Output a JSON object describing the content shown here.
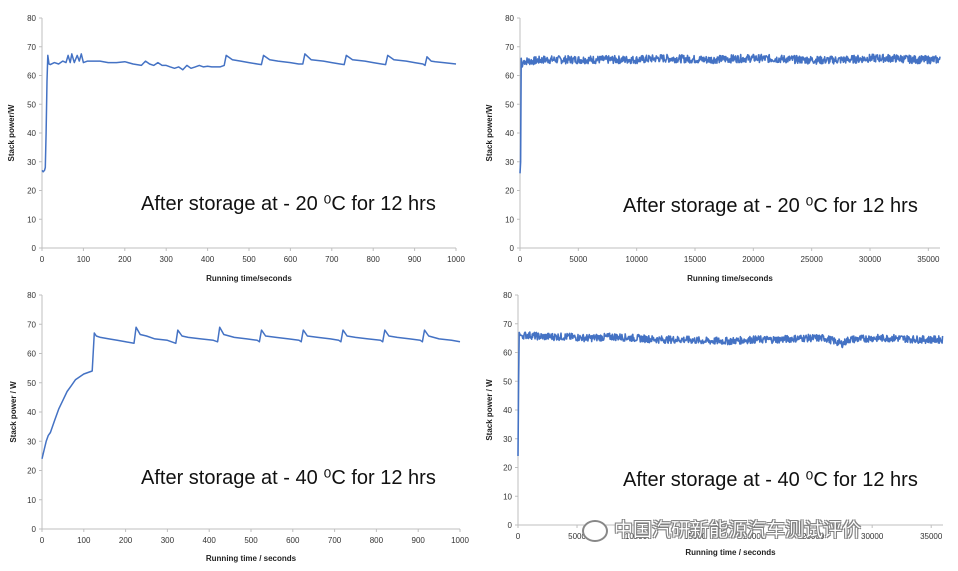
{
  "chart_data": [
    {
      "type": "line",
      "xlabel": "Running time/seconds",
      "ylabel": "Stack power/W",
      "xlim": [
        0,
        1000
      ],
      "ylim": [
        0,
        80
      ],
      "xticks": [
        0,
        100,
        200,
        300,
        400,
        500,
        600,
        700,
        800,
        900,
        1000
      ],
      "yticks": [
        0,
        10,
        20,
        30,
        40,
        50,
        60,
        70,
        80
      ],
      "annotation": "After storage at - 20 ⁰C for 12 hrs",
      "color": "#4472c4",
      "noise": 0,
      "series": [
        {
          "x": [
            0,
            3,
            6,
            8,
            10,
            12,
            14,
            17,
            20,
            30,
            40,
            50,
            58,
            63,
            68,
            72,
            78,
            85,
            90,
            95,
            100,
            110,
            120,
            140,
            160,
            180,
            200,
            220,
            240,
            250,
            260,
            270,
            280,
            290,
            300,
            310,
            320,
            330,
            340,
            350,
            360,
            370,
            380,
            390,
            400,
            410,
            420,
            430,
            440,
            445,
            460,
            480,
            500,
            520,
            530,
            535,
            550,
            570,
            600,
            620,
            630,
            635,
            650,
            680,
            700,
            720,
            730,
            735,
            750,
            780,
            800,
            820,
            830,
            835,
            850,
            880,
            900,
            920,
            925,
            930,
            940,
            950,
            970,
            1000
          ],
          "y": [
            27,
            26.5,
            27,
            28,
            40,
            58,
            67,
            64,
            63.8,
            64.5,
            64,
            65,
            64.5,
            67,
            64.5,
            67.5,
            64.5,
            67,
            65,
            67.5,
            64.5,
            65,
            65,
            65,
            64.5,
            64.5,
            64.8,
            64,
            63.5,
            65,
            64,
            63.5,
            64.5,
            63.5,
            63.5,
            63,
            62.5,
            63,
            62,
            63.5,
            62.5,
            63,
            63.5,
            63,
            63.2,
            63,
            63,
            63,
            63.5,
            67,
            65.5,
            65,
            64.5,
            64,
            63.8,
            67,
            65.5,
            65,
            64.5,
            64,
            64,
            67.5,
            65.5,
            65,
            64.5,
            64,
            63.8,
            67,
            65.5,
            65,
            64.5,
            64,
            63.8,
            67,
            65.5,
            65,
            64.5,
            64,
            63.5,
            66.5,
            65,
            64.8,
            64.5,
            64
          ]
        }
      ]
    },
    {
      "type": "line",
      "xlabel": "Running time/seconds",
      "ylabel": "Stack power/W",
      "xlim": [
        0,
        36000
      ],
      "ylim": [
        0,
        80
      ],
      "xticks": [
        0,
        5000,
        10000,
        15000,
        20000,
        25000,
        30000,
        35000
      ],
      "yticks": [
        0,
        10,
        20,
        30,
        40,
        50,
        60,
        70,
        80
      ],
      "annotation": "After storage at - 20 ⁰C for 12 hrs",
      "color": "#4472c4",
      "noise": 1.4,
      "series": [
        {
          "x": [
            0,
            50,
            100,
            150,
            200,
            300,
            500,
            1000,
            2000,
            4000,
            6000,
            8000,
            10000,
            12000,
            14000,
            16000,
            18000,
            20000,
            22000,
            24000,
            26000,
            28000,
            30000,
            32000,
            34000,
            36000
          ],
          "y": [
            26,
            30,
            66,
            64,
            63,
            65,
            65,
            65,
            65.5,
            65.5,
            65.5,
            65.5,
            65.5,
            66,
            65.8,
            65.5,
            65.8,
            66,
            65.8,
            65.5,
            65.3,
            65.5,
            66,
            66,
            65.5,
            65.5
          ]
        }
      ]
    },
    {
      "type": "line",
      "xlabel": "Running time / seconds",
      "ylabel": "Stack power / W",
      "xlim": [
        0,
        1000
      ],
      "ylim": [
        0,
        80
      ],
      "xticks": [
        0,
        100,
        200,
        300,
        400,
        500,
        600,
        700,
        800,
        900,
        1000
      ],
      "yticks": [
        0,
        10,
        20,
        30,
        40,
        50,
        60,
        70,
        80
      ],
      "annotation": "After storage at - 40 ⁰C for 12 hrs",
      "color": "#4472c4",
      "noise": 0,
      "series": [
        {
          "x": [
            0,
            5,
            10,
            15,
            20,
            30,
            40,
            50,
            60,
            70,
            80,
            90,
            100,
            110,
            120,
            125,
            130,
            140,
            160,
            180,
            200,
            220,
            225,
            235,
            250,
            270,
            300,
            320,
            325,
            335,
            350,
            380,
            410,
            420,
            425,
            435,
            460,
            490,
            515,
            520,
            525,
            535,
            560,
            590,
            615,
            620,
            625,
            635,
            660,
            690,
            710,
            715,
            720,
            730,
            750,
            780,
            810,
            815,
            820,
            830,
            850,
            880,
            905,
            910,
            915,
            925,
            950,
            980,
            1000
          ],
          "y": [
            24,
            27,
            30,
            32,
            33,
            37,
            41,
            44,
            47,
            49,
            51,
            52,
            53,
            53.5,
            54,
            67,
            66,
            65.5,
            65,
            64.5,
            64,
            63.5,
            69,
            66.5,
            66,
            65,
            64.5,
            63.5,
            68,
            66,
            65.5,
            65,
            64.5,
            64,
            69,
            66.5,
            65.5,
            65,
            64.5,
            64,
            68,
            66,
            65.5,
            65,
            64.5,
            64,
            68,
            66,
            65.5,
            65,
            64.5,
            64,
            68,
            66,
            65.5,
            65,
            64.5,
            64,
            68,
            66,
            65.5,
            65,
            64.5,
            64,
            68,
            66,
            65,
            64.5,
            64
          ]
        }
      ]
    },
    {
      "type": "line",
      "xlabel": "Running time / seconds",
      "ylabel": "Stack power / W",
      "xlim": [
        0,
        36000
      ],
      "ylim": [
        0,
        80
      ],
      "xticks": [
        0,
        5000,
        10000,
        15000,
        20000,
        25000,
        30000,
        35000
      ],
      "yticks": [
        0,
        10,
        20,
        30,
        40,
        50,
        60,
        70,
        80
      ],
      "annotation": "After storage at - 40 ⁰C for 12 hrs",
      "color": "#4472c4",
      "noise": 1.3,
      "series": [
        {
          "x": [
            0,
            50,
            100,
            200,
            300,
            500,
            1000,
            2000,
            4000,
            6000,
            8000,
            10000,
            12000,
            14000,
            16000,
            18000,
            20000,
            22000,
            24000,
            26000,
            27500,
            28000,
            30000,
            32000,
            34000,
            36000
          ],
          "y": [
            24,
            50,
            67,
            66,
            66,
            66,
            66,
            65.5,
            65.5,
            65,
            65.5,
            65,
            64.5,
            64.5,
            64,
            64,
            64.5,
            64.5,
            65,
            65,
            63,
            64.5,
            65,
            65,
            64.5,
            64.5
          ]
        }
      ]
    }
  ],
  "watermark": "中国汽研新能源汽车测试评价"
}
